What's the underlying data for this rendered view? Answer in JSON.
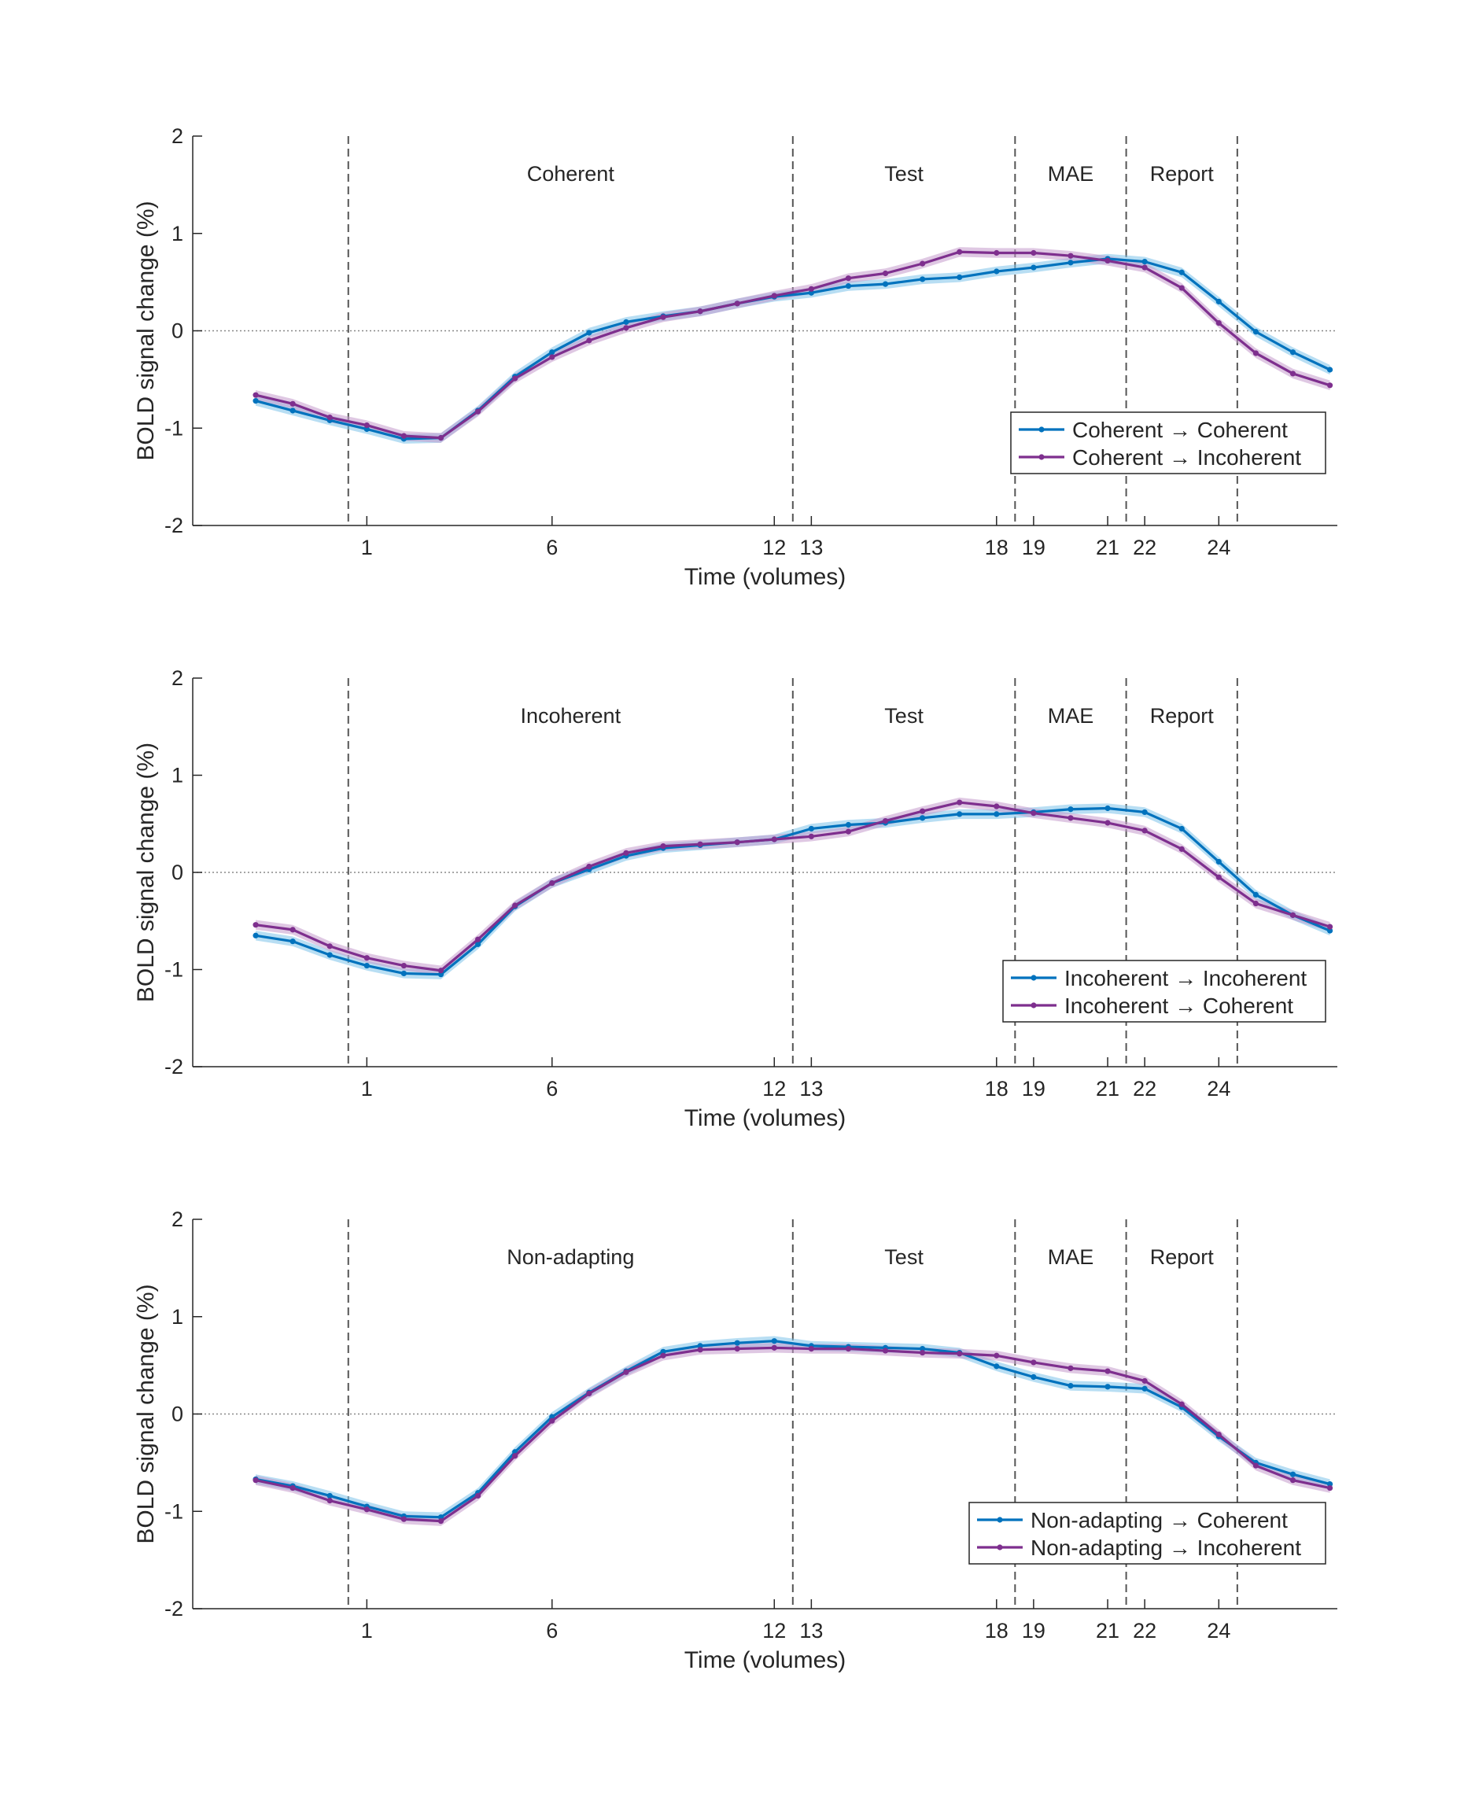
{
  "colors": {
    "coherent_series": "#0072BD",
    "coherent_band": "#7EC3EA",
    "incoherent_series": "#7E2F8E",
    "incoherent_band": "#C49ACC",
    "axis": "#262626",
    "phase_line": "#555555",
    "zero_line": "#888888"
  },
  "chart_data": [
    {
      "type": "line",
      "xlabel": "Time (volumes)",
      "ylabel": "BOLD signal change (%)",
      "ylim": [
        -2,
        2
      ],
      "xlim": [
        -3.7,
        27.2
      ],
      "xticks": [
        1,
        6,
        12,
        13,
        18,
        19,
        21,
        22,
        24
      ],
      "yticks": [
        -2,
        -1,
        0,
        1,
        2
      ],
      "zero_line": "dotted",
      "phase_boundaries": [
        0.5,
        12.5,
        18.5,
        21.5,
        24.5
      ],
      "phases": [
        {
          "label": "Coherent",
          "x": 6.5
        },
        {
          "label": "Test",
          "x": 15.5
        },
        {
          "label": "MAE",
          "x": 20
        },
        {
          "label": "Report",
          "x": 23
        }
      ],
      "legend_position": "bottom-right",
      "x": [
        -2,
        -1,
        0,
        1,
        2,
        3,
        4,
        5,
        6,
        7,
        8,
        9,
        10,
        11,
        12,
        13,
        14,
        15,
        16,
        17,
        18,
        19,
        20,
        21,
        22,
        23,
        24,
        25,
        26,
        27
      ],
      "series": [
        {
          "name": "Coherent → Coherent",
          "color": "coherent",
          "se": 0.05,
          "values": [
            -0.72,
            -0.82,
            -0.92,
            -1.01,
            -1.11,
            -1.1,
            -0.82,
            -0.47,
            -0.22,
            -0.02,
            0.09,
            0.15,
            0.2,
            0.28,
            0.35,
            0.39,
            0.46,
            0.48,
            0.53,
            0.55,
            0.61,
            0.65,
            0.7,
            0.74,
            0.71,
            0.6,
            0.3,
            -0.01,
            -0.22,
            -0.4
          ]
        },
        {
          "name": "Coherent → Incoherent",
          "color": "incoherent",
          "se": 0.05,
          "values": [
            -0.66,
            -0.75,
            -0.89,
            -0.97,
            -1.08,
            -1.1,
            -0.83,
            -0.49,
            -0.27,
            -0.1,
            0.03,
            0.14,
            0.2,
            0.28,
            0.36,
            0.43,
            0.54,
            0.59,
            0.69,
            0.81,
            0.8,
            0.8,
            0.77,
            0.72,
            0.65,
            0.44,
            0.08,
            -0.23,
            -0.44,
            -0.56
          ]
        }
      ]
    },
    {
      "type": "line",
      "xlabel": "Time (volumes)",
      "ylabel": "BOLD signal change (%)",
      "ylim": [
        -2,
        2
      ],
      "xlim": [
        -3.7,
        27.2
      ],
      "xticks": [
        1,
        6,
        12,
        13,
        18,
        19,
        21,
        22,
        24
      ],
      "yticks": [
        -2,
        -1,
        0,
        1,
        2
      ],
      "zero_line": "dotted",
      "phase_boundaries": [
        0.5,
        12.5,
        18.5,
        21.5,
        24.5
      ],
      "phases": [
        {
          "label": "Incoherent",
          "x": 6.5
        },
        {
          "label": "Test",
          "x": 15.5
        },
        {
          "label": "MAE",
          "x": 20
        },
        {
          "label": "Report",
          "x": 23
        }
      ],
      "legend_position": "bottom-right",
      "x": [
        -2,
        -1,
        0,
        1,
        2,
        3,
        4,
        5,
        6,
        7,
        8,
        9,
        10,
        11,
        12,
        13,
        14,
        15,
        16,
        17,
        18,
        19,
        20,
        21,
        22,
        23,
        24,
        25,
        26,
        27
      ],
      "series": [
        {
          "name": "Incoherent → Incoherent",
          "color": "coherent",
          "se": 0.05,
          "values": [
            -0.65,
            -0.71,
            -0.85,
            -0.96,
            -1.04,
            -1.05,
            -0.74,
            -0.35,
            -0.11,
            0.03,
            0.17,
            0.25,
            0.28,
            0.31,
            0.34,
            0.45,
            0.49,
            0.51,
            0.56,
            0.6,
            0.6,
            0.62,
            0.65,
            0.66,
            0.62,
            0.45,
            0.11,
            -0.23,
            -0.44,
            -0.6
          ]
        },
        {
          "name": "Incoherent → Coherent",
          "color": "incoherent",
          "se": 0.05,
          "values": [
            -0.54,
            -0.59,
            -0.76,
            -0.88,
            -0.96,
            -1.01,
            -0.69,
            -0.34,
            -0.11,
            0.06,
            0.2,
            0.27,
            0.29,
            0.31,
            0.34,
            0.37,
            0.42,
            0.53,
            0.63,
            0.72,
            0.68,
            0.61,
            0.56,
            0.51,
            0.43,
            0.24,
            -0.05,
            -0.32,
            -0.44,
            -0.56
          ]
        }
      ]
    },
    {
      "type": "line",
      "xlabel": "Time (volumes)",
      "ylabel": "BOLD signal change (%)",
      "ylim": [
        -2,
        2
      ],
      "xlim": [
        -3.7,
        27.2
      ],
      "xticks": [
        1,
        6,
        12,
        13,
        18,
        19,
        21,
        22,
        24
      ],
      "yticks": [
        -2,
        -1,
        0,
        1,
        2
      ],
      "zero_line": "dotted",
      "phase_boundaries": [
        0.5,
        12.5,
        18.5,
        21.5,
        24.5
      ],
      "phases": [
        {
          "label": "Non-adapting",
          "x": 6.5
        },
        {
          "label": "Test",
          "x": 15.5
        },
        {
          "label": "MAE",
          "x": 20
        },
        {
          "label": "Report",
          "x": 23
        }
      ],
      "legend_position": "bottom-right",
      "x": [
        -2,
        -1,
        0,
        1,
        2,
        3,
        4,
        5,
        6,
        7,
        8,
        9,
        10,
        11,
        12,
        13,
        14,
        15,
        16,
        17,
        18,
        19,
        20,
        21,
        22,
        23,
        24,
        25,
        26,
        27
      ],
      "series": [
        {
          "name": "Non-adapting → Coherent",
          "color": "coherent",
          "se": 0.05,
          "values": [
            -0.67,
            -0.74,
            -0.84,
            -0.95,
            -1.05,
            -1.06,
            -0.81,
            -0.39,
            -0.03,
            0.22,
            0.44,
            0.64,
            0.7,
            0.73,
            0.75,
            0.7,
            0.69,
            0.68,
            0.67,
            0.63,
            0.49,
            0.38,
            0.29,
            0.28,
            0.26,
            0.07,
            -0.23,
            -0.5,
            -0.62,
            -0.72
          ]
        },
        {
          "name": "Non-adapting → Incoherent",
          "color": "incoherent",
          "se": 0.05,
          "values": [
            -0.68,
            -0.76,
            -0.89,
            -0.98,
            -1.08,
            -1.1,
            -0.84,
            -0.43,
            -0.07,
            0.21,
            0.43,
            0.6,
            0.66,
            0.67,
            0.68,
            0.67,
            0.67,
            0.65,
            0.63,
            0.62,
            0.6,
            0.53,
            0.47,
            0.44,
            0.34,
            0.1,
            -0.21,
            -0.53,
            -0.68,
            -0.76
          ]
        }
      ]
    }
  ]
}
